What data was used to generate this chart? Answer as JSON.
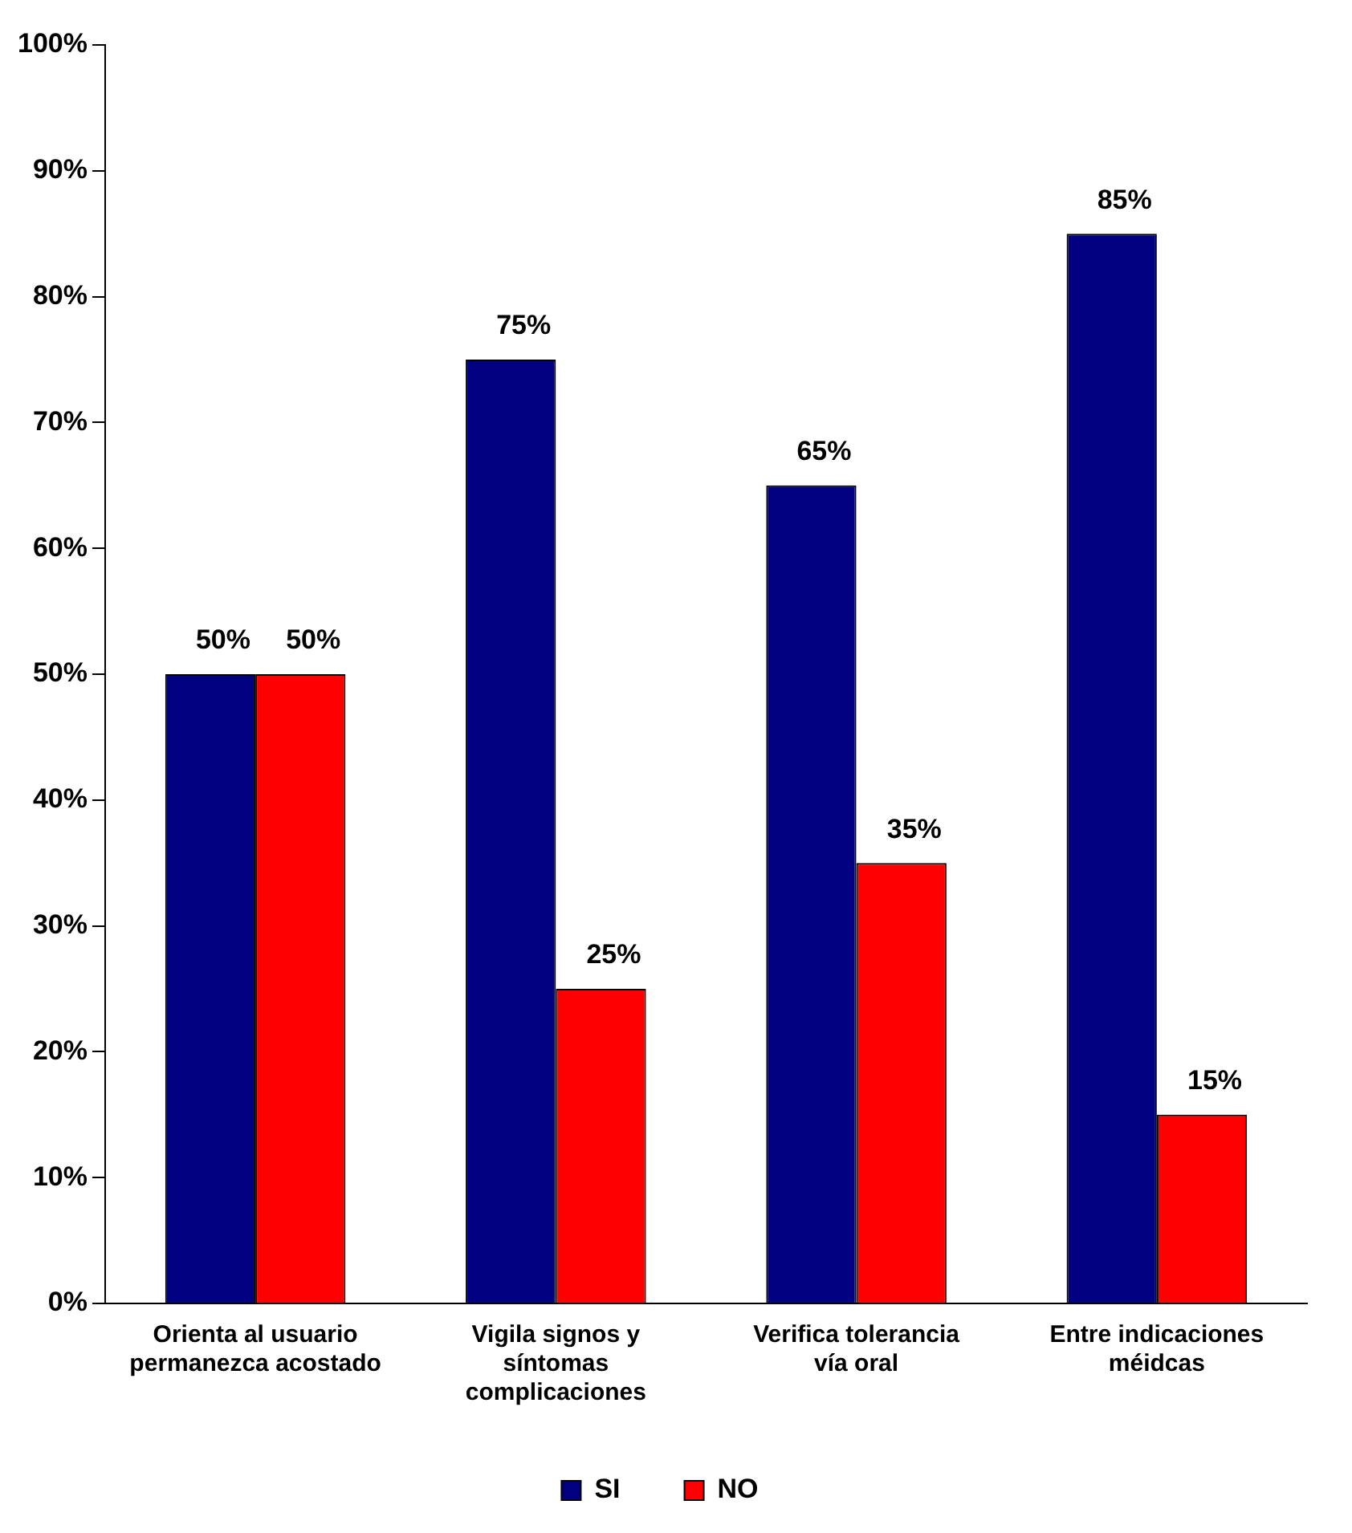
{
  "chart_data": {
    "type": "bar",
    "categories": [
      "Orienta al usuario permanezca acostado",
      "Vigila signos y síntomas complicaciones",
      "Verifica tolerancia vía oral",
      "Entre indicaciones méidcas"
    ],
    "series": [
      {
        "name": "SI",
        "color": "#000080",
        "values": [
          50,
          75,
          65,
          85
        ],
        "value_labels": [
          "50%",
          "75%",
          "65%",
          "85%"
        ]
      },
      {
        "name": "NO",
        "color": "#ff0000",
        "values": [
          50,
          25,
          35,
          15
        ],
        "value_labels": [
          "50%",
          "25%",
          "35%",
          "15%"
        ]
      }
    ],
    "ylim": [
      0,
      100
    ],
    "yticks": [
      {
        "value": 0,
        "label": "0%"
      },
      {
        "value": 10,
        "label": "10%"
      },
      {
        "value": 20,
        "label": "20%"
      },
      {
        "value": 30,
        "label": "30%"
      },
      {
        "value": 40,
        "label": "40%"
      },
      {
        "value": 50,
        "label": "50%"
      },
      {
        "value": 60,
        "label": "60%"
      },
      {
        "value": 70,
        "label": "70%"
      },
      {
        "value": 80,
        "label": "80%"
      },
      {
        "value": 90,
        "label": "90%"
      },
      {
        "value": 100,
        "label": "100%"
      }
    ],
    "grid": false,
    "legend": "bottom"
  }
}
